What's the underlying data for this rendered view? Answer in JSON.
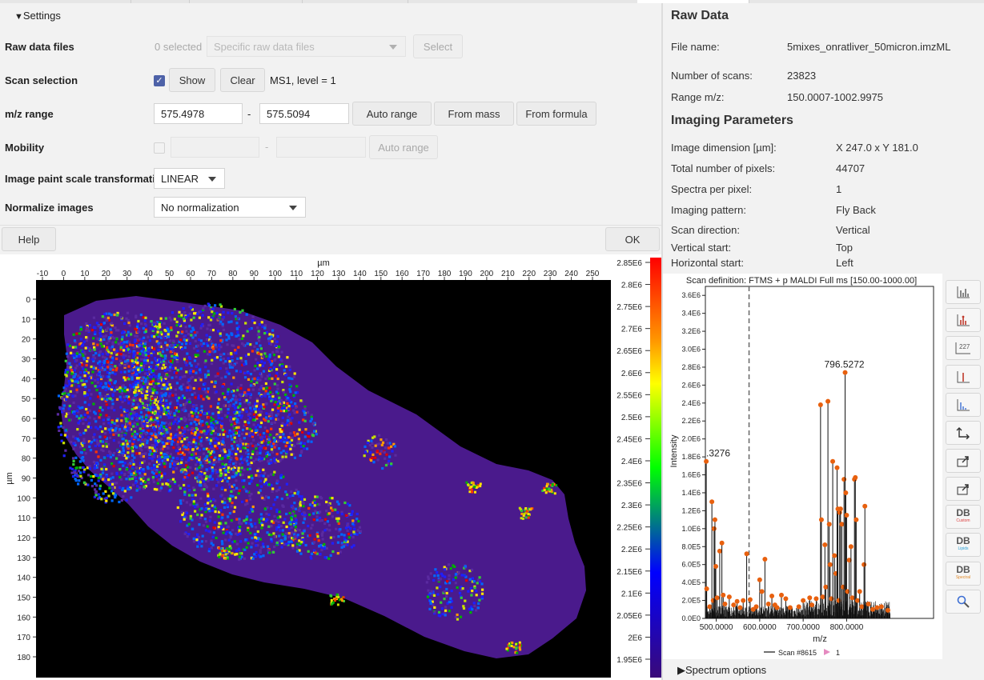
{
  "settings": {
    "title": "Settings",
    "raw_files": {
      "label": "Raw data files",
      "count": "0 selected",
      "combo": "Specific raw data files",
      "select_btn": "Select"
    },
    "scan": {
      "label": "Scan selection",
      "show_btn": "Show",
      "clear_btn": "Clear",
      "summary": "MS1, level = 1"
    },
    "mz": {
      "label": "m/z range",
      "min": "575.4978",
      "dash": "-",
      "max": "575.5094",
      "auto_btn": "Auto range",
      "mass_btn": "From mass",
      "formula_btn": "From formula"
    },
    "mobility": {
      "label": "Mobility",
      "dash": "-",
      "auto_btn": "Auto range"
    },
    "paint": {
      "label": "Image paint scale transformation",
      "value": "LINEAR"
    },
    "normalize": {
      "label": "Normalize images",
      "value": "No normalization"
    },
    "help_btn": "Help",
    "ok_btn": "OK"
  },
  "raw_data": {
    "title": "Raw Data",
    "file_name_label": "File name:",
    "file_name": "5mixes_onratliver_50micron.imzML",
    "scans_label": "Number of scans:",
    "scans": "23823",
    "range_label": "Range m/z:",
    "range": "150.0007-1002.9975",
    "imaging_title": "Imaging Parameters",
    "params": [
      {
        "k": "Image dimension [µm]:",
        "v": "X 247.0  x Y 181.0"
      },
      {
        "k": "Total number of pixels:",
        "v": "44707"
      },
      {
        "k": "Spectra per pixel:",
        "v": "1"
      },
      {
        "k": "Imaging pattern:",
        "v": "Fly Back"
      },
      {
        "k": "Scan direction:",
        "v": "Vertical"
      },
      {
        "k": "Vertical start:",
        "v": "Top"
      },
      {
        "k": "Horizontal start:",
        "v": "Left"
      }
    ]
  },
  "image_plot": {
    "x_unit": "µm",
    "y_unit": "µm",
    "x_ticks": [
      "-10",
      "0",
      "10",
      "20",
      "30",
      "40",
      "50",
      "60",
      "70",
      "80",
      "90",
      "100",
      "110",
      "120",
      "130",
      "140",
      "150",
      "160",
      "170",
      "180",
      "190",
      "200",
      "210",
      "220",
      "230",
      "240",
      "250"
    ],
    "y_ticks": [
      "0",
      "10",
      "20",
      "30",
      "40",
      "50",
      "60",
      "70",
      "80",
      "90",
      "100",
      "110",
      "120",
      "130",
      "140",
      "150",
      "160",
      "170",
      "180"
    ],
    "scale_ticks": [
      "2.85E6",
      "2.8E6",
      "2.75E6",
      "2.7E6",
      "2.65E6",
      "2.6E6",
      "2.55E6",
      "2.5E6",
      "2.45E6",
      "2.4E6",
      "2.35E6",
      "2.3E6",
      "2.25E6",
      "2.2E6",
      "2.15E6",
      "2.1E6",
      "2.05E6",
      "2E6",
      "1.95E6"
    ]
  },
  "chart_data": {
    "type": "bar",
    "title": "Scan definition: FTMS + p MALDI Full ms [150.00-1000.00]",
    "xlabel": "m/z",
    "ylabel": "Intensity",
    "x_ticks": [
      "500.0000",
      "600.0000",
      "700.0000",
      "800.0000"
    ],
    "y_ticks": [
      "0.0E0",
      "2.0E5",
      "4.0E5",
      "6.0E5",
      "8.0E5",
      "1.0E6",
      "1.2E6",
      "1.4E6",
      "1.6E6",
      "1.8E6",
      "2.0E6",
      "2.2E6",
      "2.4E6",
      "2.6E6",
      "2.8E6",
      "3.0E6",
      "3.2E6",
      "3.4E6",
      "3.6E6"
    ],
    "xlim": [
      475,
      1000
    ],
    "ylim": [
      0,
      3700000.0
    ],
    "marker_x": 575.5,
    "annotations": [
      {
        "x": 796.5272,
        "label": "796.5272"
      },
      {
        "x": 475,
        "label": ".3276"
      }
    ],
    "peaks": [
      [
        477,
        1750000.0
      ],
      [
        478,
        330000.0
      ],
      [
        485,
        130000.0
      ],
      [
        490,
        1300000.0
      ],
      [
        493,
        200000.0
      ],
      [
        495,
        1000000.0
      ],
      [
        497,
        1100000.0
      ],
      [
        499,
        580000.0
      ],
      [
        502,
        230000.0
      ],
      [
        508,
        750000.0
      ],
      [
        513,
        840000.0
      ],
      [
        516,
        260000.0
      ],
      [
        520,
        160000.0
      ],
      [
        530,
        240000.0
      ],
      [
        540,
        150000.0
      ],
      [
        548,
        190000.0
      ],
      [
        555,
        120000.0
      ],
      [
        562,
        200000.0
      ],
      [
        570,
        720000.0
      ],
      [
        578,
        210000.0
      ],
      [
        585,
        100000.0
      ],
      [
        592,
        130000.0
      ],
      [
        600,
        430000.0
      ],
      [
        605,
        300000.0
      ],
      [
        612,
        660000.0
      ],
      [
        620,
        160000.0
      ],
      [
        628,
        250000.0
      ],
      [
        635,
        150000.0
      ],
      [
        640,
        120000.0
      ],
      [
        650,
        260000.0
      ],
      [
        660,
        220000.0
      ],
      [
        670,
        120000.0
      ],
      [
        690,
        130000.0
      ],
      [
        700,
        200000.0
      ],
      [
        715,
        230000.0
      ],
      [
        720,
        150000.0
      ],
      [
        730,
        220000.0
      ],
      [
        740,
        2380000.0
      ],
      [
        742,
        1100000.0
      ],
      [
        745,
        240000.0
      ],
      [
        750,
        820000.0
      ],
      [
        752,
        350000.0
      ],
      [
        757,
        2420000.0
      ],
      [
        760,
        1050000.0
      ],
      [
        762,
        600000.0
      ],
      [
        765,
        220000.0
      ],
      [
        768,
        1750000.0
      ],
      [
        772,
        700000.0
      ],
      [
        775,
        500000.0
      ],
      [
        778,
        1680000.0
      ],
      [
        780,
        1220000.0
      ],
      [
        782,
        200000.0
      ],
      [
        784,
        1180000.0
      ],
      [
        786,
        1220000.0
      ],
      [
        789,
        1050000.0
      ],
      [
        792,
        350000.0
      ],
      [
        794,
        1550000.0
      ],
      [
        796.5,
        2740000.0
      ],
      [
        798,
        1400000.0
      ],
      [
        800,
        1150000.0
      ],
      [
        802,
        300000.0
      ],
      [
        806,
        650000.0
      ],
      [
        810,
        800000.0
      ],
      [
        813,
        230000.0
      ],
      [
        818,
        1550000.0
      ],
      [
        820,
        1570000.0
      ],
      [
        822,
        1100000.0
      ],
      [
        825,
        200000.0
      ],
      [
        830,
        300000.0
      ],
      [
        835,
        130000.0
      ],
      [
        840,
        600000.0
      ],
      [
        842,
        1250000.0
      ],
      [
        850,
        160000.0
      ],
      [
        860,
        100000.0
      ],
      [
        870,
        120000.0
      ],
      [
        880,
        130000.0
      ],
      [
        895,
        90000.0
      ]
    ],
    "legend": {
      "series": "Scan #8615",
      "count": "1"
    },
    "series": [
      {
        "name": "Scan #8615"
      }
    ]
  },
  "colors": {
    "peak": "#e8600e",
    "accent": "#4e62a8"
  },
  "tools": [
    "bar-chart-icon",
    "bar-chart-labeled-icon",
    "peak-label-icon",
    "centroid-icon",
    "continuous-icon",
    "axes-icon",
    "export-icon",
    "export-image-icon",
    "db-custom-icon",
    "db-lipids-icon",
    "db-spectral-icon",
    "search-icon"
  ],
  "tool_text": {
    "peak_count": "227",
    "db": "DB",
    "db_custom": "Custom",
    "db_lipids": "Lipids",
    "db_spectral": "Spectral"
  },
  "spectrum_options": "Spectrum options"
}
